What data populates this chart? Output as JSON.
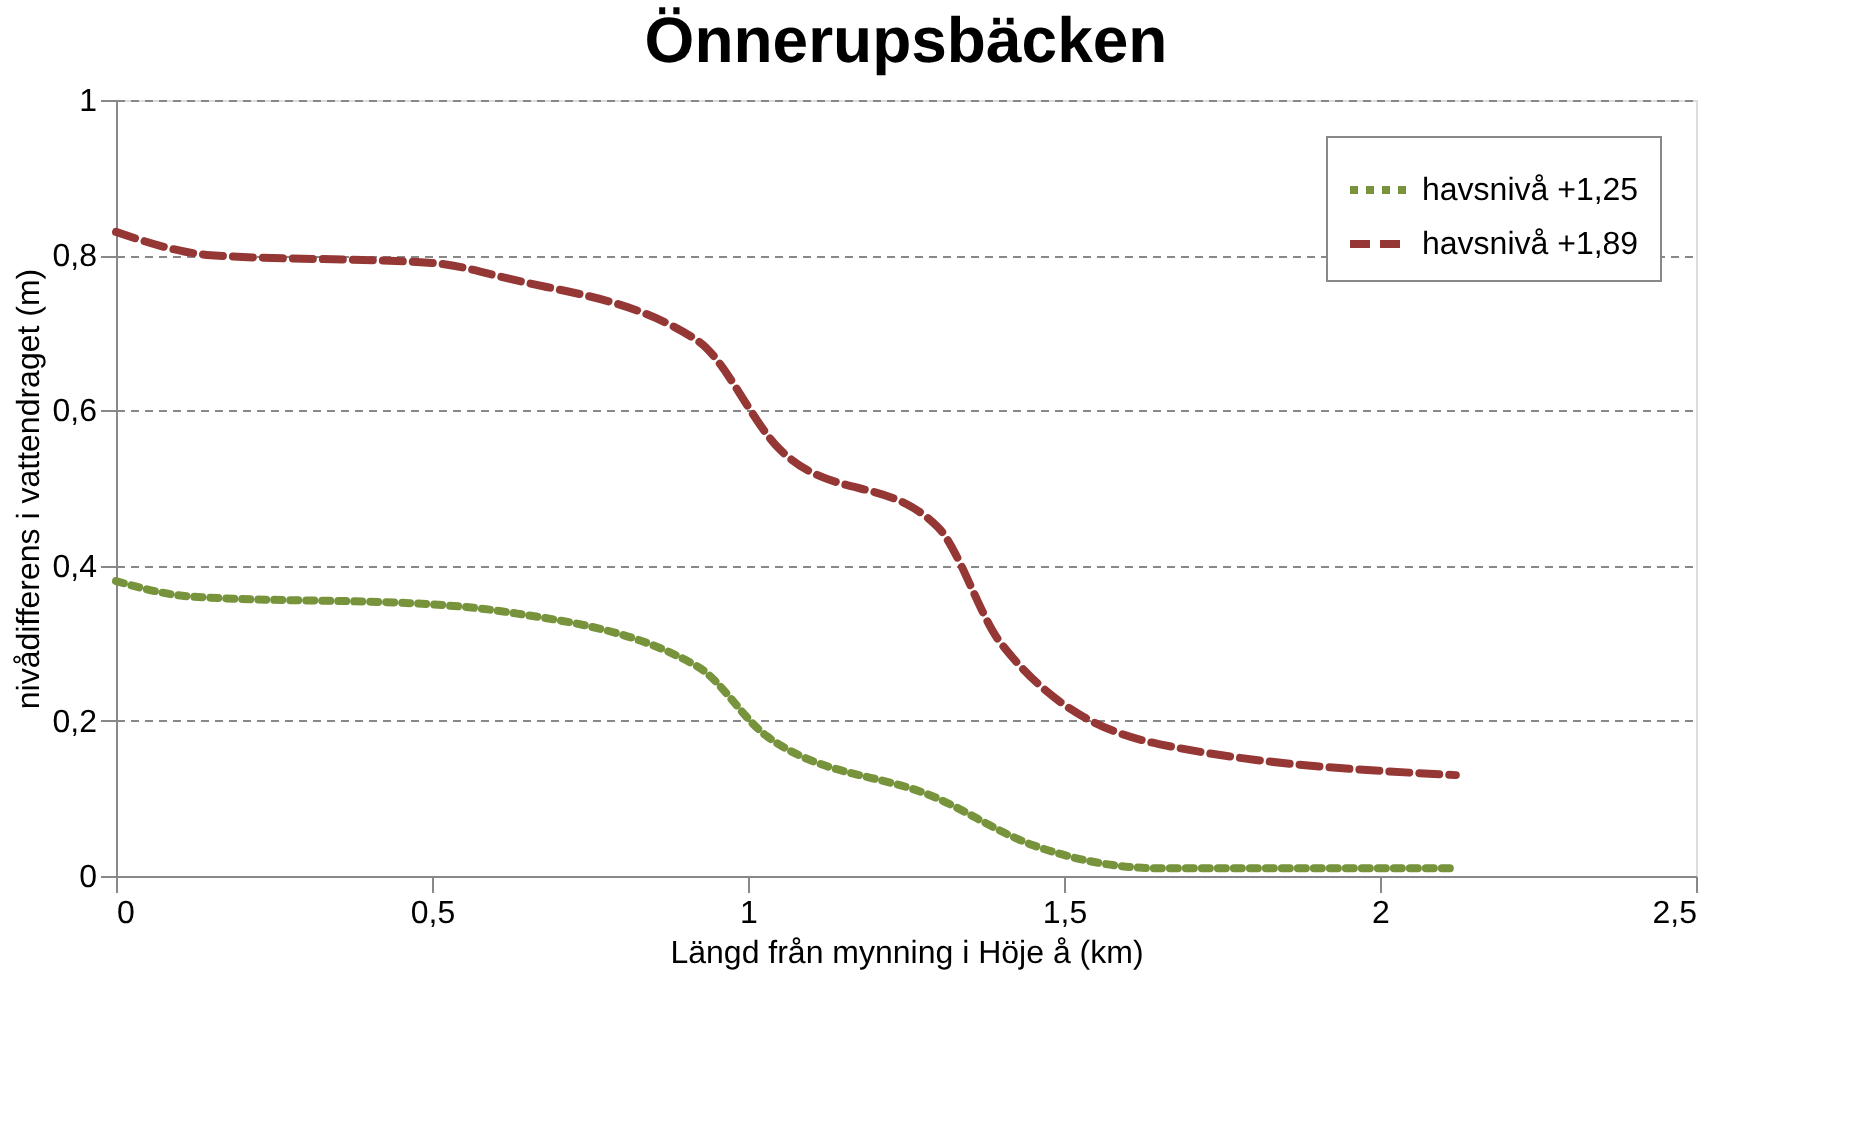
{
  "chart_data": {
    "type": "line",
    "title": "Önnerupsbäcken",
    "xlabel": "Längd från mynning i Höje å (km)",
    "ylabel": "nivådifferens i vattendraget (m)",
    "xlim": [
      0,
      2.5
    ],
    "xticks": [
      0,
      {
        "value": 0.5,
        "label": "0,5"
      },
      1,
      {
        "value": 1.5,
        "label": "1,5"
      },
      2,
      {
        "value": 2.5,
        "label": "2,5"
      }
    ],
    "ylim": [
      0,
      1
    ],
    "yticks": [
      0,
      {
        "value": 0.2,
        "label": "0,2"
      },
      {
        "value": 0.4,
        "label": "0,4"
      },
      {
        "value": 0.6,
        "label": "0,6"
      },
      {
        "value": 0.8,
        "label": "0,8"
      },
      1
    ],
    "grid": "y",
    "legend": "top right",
    "marker": "none",
    "series": [
      {
        "name": "havsnivå +1,25",
        "color": "#77933c",
        "line_style": "dotted",
        "x": [
          0,
          0.12,
          0.5,
          0.62,
          0.92,
          1.03,
          1.3,
          1.45,
          1.65,
          2.12
        ],
        "values": [
          0.38,
          0.36,
          0.35,
          0.34,
          0.27,
          0.18,
          0.1,
          0.04,
          0.01,
          0.01
        ]
      },
      {
        "name": "havsnivå +1,89",
        "color": "#953735",
        "line_style": "dashed",
        "x": [
          0,
          0.15,
          0.5,
          0.62,
          0.92,
          1.05,
          1.3,
          1.4,
          1.65,
          2.12
        ],
        "values": [
          0.83,
          0.8,
          0.79,
          0.77,
          0.69,
          0.55,
          0.45,
          0.3,
          0.17,
          0.13
        ]
      }
    ]
  }
}
